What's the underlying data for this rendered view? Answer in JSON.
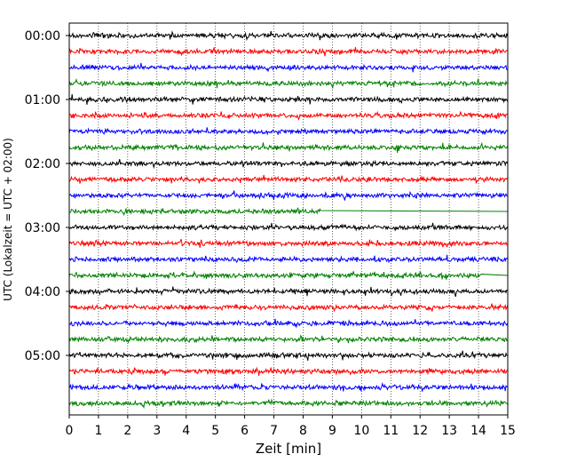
{
  "chart_data": {
    "type": "line",
    "chart_kind": "helicorder seismogram",
    "xlabel": "Zeit  [min]",
    "ylabel": "UTC (Lokalzeit = UTC + 02:00)",
    "xlim": [
      0,
      15
    ],
    "x_ticks": [
      "0",
      "1",
      "2",
      "3",
      "4",
      "5",
      "6",
      "7",
      "8",
      "9",
      "10",
      "11",
      "12",
      "13",
      "14",
      "15"
    ],
    "y_ticks": [
      "00:00",
      "01:00",
      "02:00",
      "03:00",
      "04:00",
      "05:00"
    ],
    "trace_interval_min": 15,
    "grid": "vertical dotted lines at each minute",
    "colors": [
      "#000000",
      "#ff0000",
      "#0000ff",
      "#008000"
    ],
    "traces": [
      {
        "label": "00:00",
        "color": "#000000",
        "end_min": 15
      },
      {
        "label": "00:15",
        "color": "#ff0000",
        "end_min": 15
      },
      {
        "label": "00:30",
        "color": "#0000ff",
        "end_min": 15
      },
      {
        "label": "00:45",
        "color": "#008000",
        "end_min": 15
      },
      {
        "label": "01:00",
        "color": "#000000",
        "end_min": 15
      },
      {
        "label": "01:15",
        "color": "#ff0000",
        "end_min": 15
      },
      {
        "label": "01:30",
        "color": "#0000ff",
        "end_min": 15
      },
      {
        "label": "01:45",
        "color": "#008000",
        "end_min": 15
      },
      {
        "label": "02:00",
        "color": "#000000",
        "end_min": 15
      },
      {
        "label": "02:15",
        "color": "#ff0000",
        "end_min": 15
      },
      {
        "label": "02:30",
        "color": "#0000ff",
        "end_min": 15
      },
      {
        "label": "02:45",
        "color": "#008000",
        "end_min": 8.6
      },
      {
        "label": "03:00",
        "color": "#000000",
        "end_min": 15
      },
      {
        "label": "03:15",
        "color": "#ff0000",
        "end_min": 15
      },
      {
        "label": "03:30",
        "color": "#0000ff",
        "end_min": 15
      },
      {
        "label": "03:45",
        "color": "#008000",
        "end_min": 14.1
      },
      {
        "label": "04:00",
        "color": "#000000",
        "end_min": 15
      },
      {
        "label": "04:15",
        "color": "#ff0000",
        "end_min": 15
      },
      {
        "label": "04:30",
        "color": "#0000ff",
        "end_min": 15
      },
      {
        "label": "04:45",
        "color": "#008000",
        "end_min": 15
      },
      {
        "label": "05:00",
        "color": "#000000",
        "end_min": 15
      },
      {
        "label": "05:15",
        "color": "#ff0000",
        "end_min": 15
      },
      {
        "label": "05:30",
        "color": "#0000ff",
        "end_min": 15
      },
      {
        "label": "05:45",
        "color": "#008000",
        "end_min": 15
      }
    ]
  }
}
